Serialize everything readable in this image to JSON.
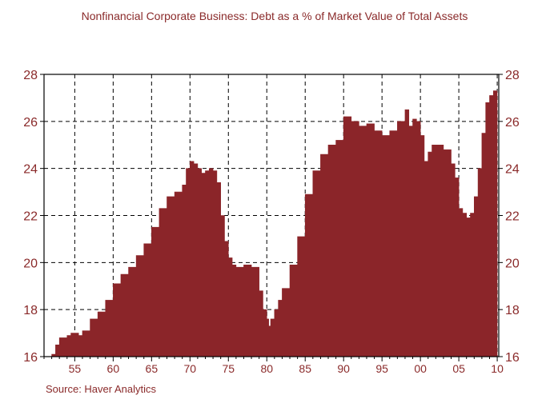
{
  "chart_data": {
    "type": "area",
    "title": "Nonfinancial Corporate Business: Debt as a % of Market Value of Total Assets",
    "source": "Source: Haver Analytics",
    "xlabel": "",
    "ylabel": "",
    "ylim": [
      16,
      28
    ],
    "xlim": [
      1951,
      2010.2
    ],
    "y_ticks": [
      16,
      18,
      20,
      22,
      24,
      26,
      28
    ],
    "x_tick_values": [
      1955,
      1960,
      1965,
      1970,
      1975,
      1980,
      1985,
      1990,
      1995,
      2000,
      2005,
      2010
    ],
    "x_tick_labels": [
      "55",
      "60",
      "65",
      "70",
      "75",
      "80",
      "85",
      "90",
      "95",
      "00",
      "05",
      "10"
    ],
    "grid": true,
    "fill_color": "#8b2529",
    "text_color": "#8a2a2a",
    "series": [
      {
        "x": [
          1952.0,
          1952.5,
          1953.0,
          1953.5,
          1954.0,
          1954.5,
          1955.0,
          1955.5,
          1956.0,
          1957.0,
          1958.0,
          1959.0,
          1960.0,
          1961.0,
          1962.0,
          1963.0,
          1964.0,
          1965.0,
          1966.0,
          1967.0,
          1968.0,
          1969.0,
          1969.5,
          1970.0,
          1970.5,
          1971.0,
          1971.5,
          1972.0,
          1972.5,
          1973.0,
          1973.5,
          1974.0,
          1974.5,
          1975.0,
          1975.5,
          1976.0,
          1977.0,
          1978.0,
          1979.0,
          1979.5,
          1980.0,
          1980.25,
          1980.5,
          1981.0,
          1981.5,
          1982.0,
          1983.0,
          1984.0,
          1985.0,
          1986.0,
          1987.0,
          1988.0,
          1989.0,
          1990.0,
          1991.0,
          1992.0,
          1993.0,
          1994.0,
          1995.0,
          1996.0,
          1997.0,
          1998.0,
          1998.5,
          1999.0,
          1999.5,
          2000.0,
          2000.5,
          2001.0,
          2001.5,
          2002.0,
          2003.0,
          2004.0,
          2004.5,
          2005.0,
          2005.5,
          2006.0,
          2006.5,
          2007.0,
          2007.5,
          2008.0,
          2008.5,
          2009.0,
          2009.5,
          2010.0
        ],
        "values": [
          16.1,
          16.5,
          16.8,
          16.8,
          16.9,
          17.0,
          17.0,
          16.9,
          17.1,
          17.6,
          17.9,
          18.4,
          19.1,
          19.5,
          19.8,
          20.3,
          20.8,
          21.5,
          22.3,
          22.8,
          23.0,
          23.3,
          24.0,
          24.3,
          24.2,
          24.0,
          23.8,
          23.9,
          24.0,
          23.9,
          23.4,
          22.0,
          20.9,
          20.2,
          19.9,
          19.8,
          19.9,
          19.8,
          18.8,
          18.0,
          17.6,
          17.3,
          17.6,
          18.0,
          18.4,
          18.9,
          19.9,
          21.1,
          22.9,
          23.9,
          24.6,
          25.0,
          25.2,
          26.2,
          26.0,
          25.8,
          25.9,
          25.6,
          25.4,
          25.6,
          26.0,
          26.5,
          25.8,
          26.1,
          26.0,
          25.4,
          24.3,
          24.7,
          25.0,
          25.0,
          24.8,
          24.2,
          23.6,
          22.3,
          22.1,
          21.9,
          22.1,
          22.8,
          24.0,
          25.5,
          26.8,
          27.1,
          27.3,
          27.3
        ]
      }
    ]
  }
}
